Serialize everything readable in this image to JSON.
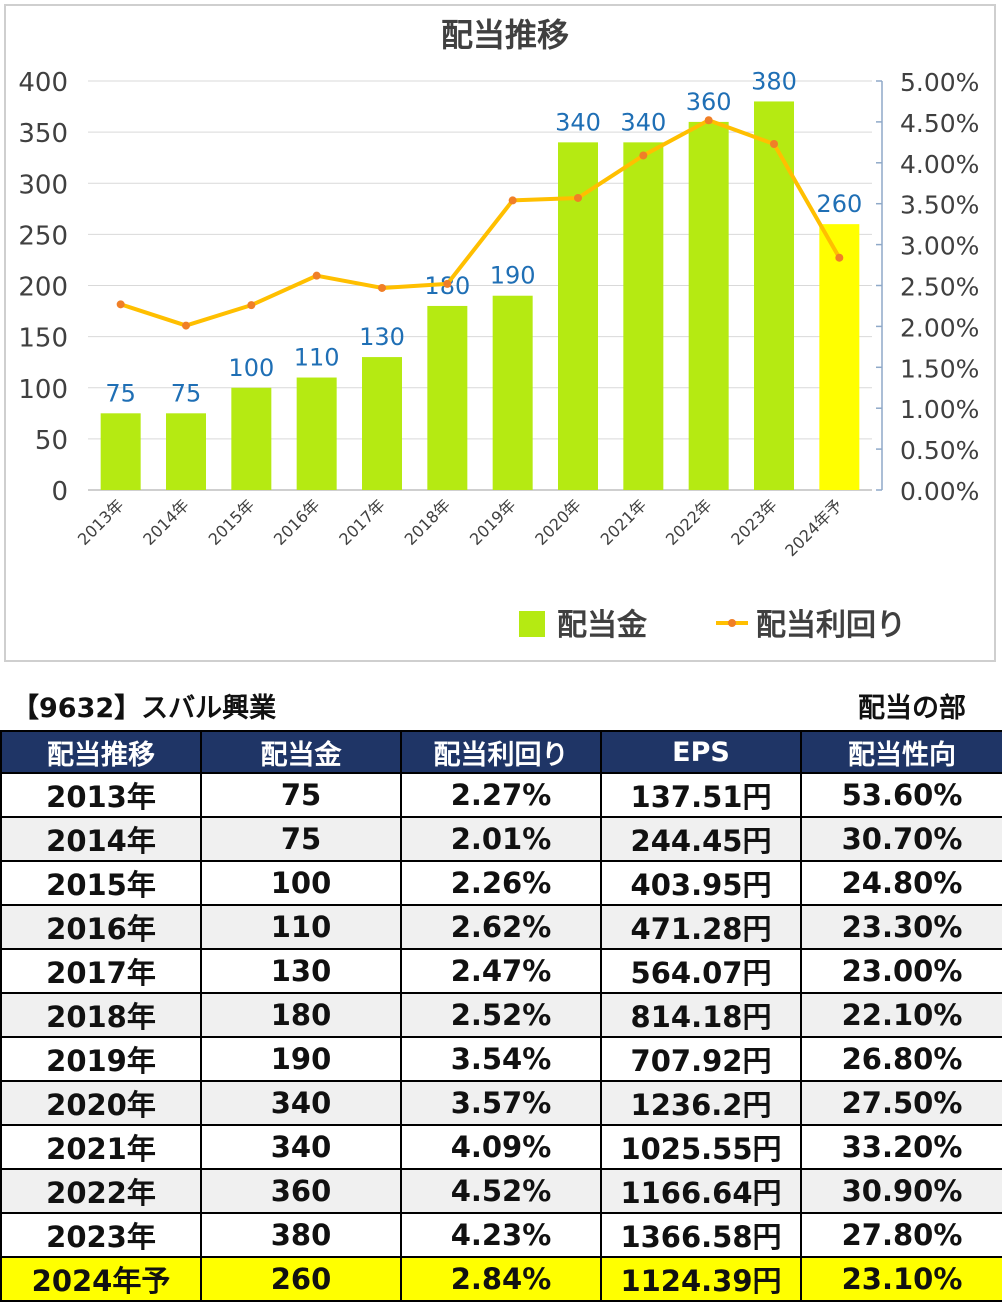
{
  "colors": {
    "bar": "#b5ea12",
    "bar_forecast": "#ffff00",
    "line": "#ffbf00",
    "line_marker": "#f07f27",
    "data_label": "#1f6fb5",
    "axis_text": "#404040",
    "grid": "#d9d9d9",
    "header_bg": "#1f3566"
  },
  "chart_data": {
    "type": "bar",
    "title": "配当推移",
    "categories": [
      "2013年",
      "2014年",
      "2015年",
      "2016年",
      "2017年",
      "2018年",
      "2019年",
      "2020年",
      "2021年",
      "2022年",
      "2023年",
      "2024年予"
    ],
    "series": [
      {
        "name": "配当金",
        "type": "bar",
        "axis": "left",
        "values": [
          75,
          75,
          100,
          110,
          130,
          180,
          190,
          340,
          340,
          360,
          380,
          260
        ]
      },
      {
        "name": "配当利回り",
        "type": "line",
        "axis": "right",
        "values": [
          2.27,
          2.01,
          2.26,
          2.62,
          2.47,
          2.52,
          3.54,
          3.57,
          4.09,
          4.52,
          4.23,
          2.84
        ]
      }
    ],
    "y_left": {
      "min": 0,
      "max": 400,
      "step": 50,
      "ticks": [
        "0",
        "50",
        "100",
        "150",
        "200",
        "250",
        "300",
        "350",
        "400"
      ]
    },
    "y_right": {
      "min": 0,
      "max": 5,
      "step": 0.5,
      "ticks": [
        "0.00%",
        "0.50%",
        "1.00%",
        "1.50%",
        "2.00%",
        "2.50%",
        "3.00%",
        "3.50%",
        "4.00%",
        "4.50%",
        "5.00%"
      ]
    },
    "grid": true,
    "legend_position": "bottom-right",
    "data_labels": true
  },
  "table": {
    "title": "【9632】スバル興業",
    "subtitle": "配当の部",
    "headers": [
      "配当推移",
      "配当金",
      "配当利回り",
      "EPS",
      "配当性向"
    ],
    "rows": [
      [
        "2013年",
        "75",
        "2.27%",
        "137.51円",
        "53.60%"
      ],
      [
        "2014年",
        "75",
        "2.01%",
        "244.45円",
        "30.70%"
      ],
      [
        "2015年",
        "100",
        "2.26%",
        "403.95円",
        "24.80%"
      ],
      [
        "2016年",
        "110",
        "2.62%",
        "471.28円",
        "23.30%"
      ],
      [
        "2017年",
        "130",
        "2.47%",
        "564.07円",
        "23.00%"
      ],
      [
        "2018年",
        "180",
        "2.52%",
        "814.18円",
        "22.10%"
      ],
      [
        "2019年",
        "190",
        "3.54%",
        "707.92円",
        "26.80%"
      ],
      [
        "2020年",
        "340",
        "3.57%",
        "1236.2円",
        "27.50%"
      ],
      [
        "2021年",
        "340",
        "4.09%",
        "1025.55円",
        "33.20%"
      ],
      [
        "2022年",
        "360",
        "4.52%",
        "1166.64円",
        "30.90%"
      ],
      [
        "2023年",
        "380",
        "4.23%",
        "1366.58円",
        "27.80%"
      ],
      [
        "2024年予",
        "260",
        "2.84%",
        "1124.39円",
        "23.10%"
      ]
    ]
  }
}
